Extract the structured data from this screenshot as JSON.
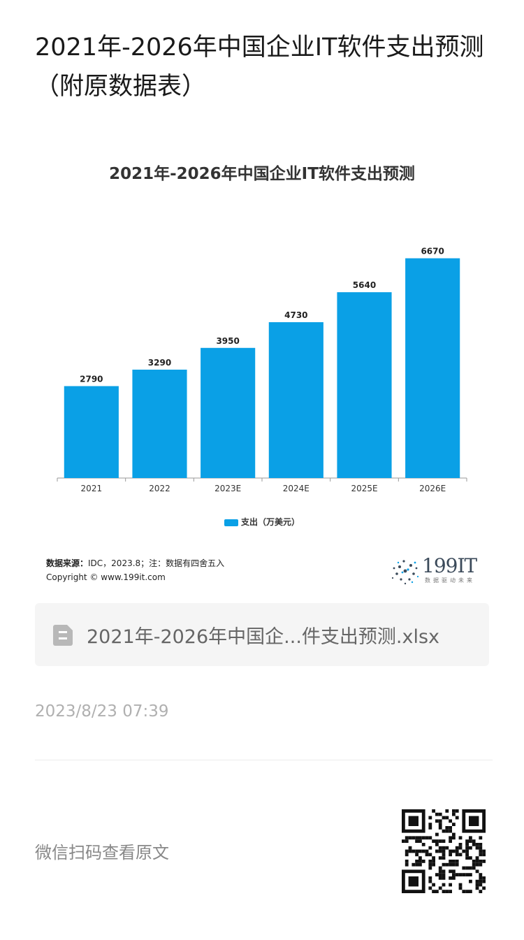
{
  "article": {
    "title": "2021年-2026年中国企业IT软件支出预测（附原数据表）"
  },
  "chart_data": {
    "type": "bar",
    "title": "2021年-2026年中国企业IT软件支出预测",
    "categories": [
      "2021",
      "2022",
      "2023E",
      "2024E",
      "2025E",
      "2026E"
    ],
    "series": [
      {
        "name": "支出（万美元）",
        "values": [
          2790,
          3290,
          3950,
          4730,
          5640,
          6670
        ]
      }
    ],
    "ylim": [
      0,
      7000
    ],
    "grid": false,
    "legend_position": "bottom",
    "colors": {
      "bar": "#0aa0e6"
    }
  },
  "source": {
    "label": "数据来源：",
    "text": "IDC，2023.8；注：数据有四舍五入",
    "copyright": "Copyright © www.199it.com"
  },
  "logo": {
    "text": "199IT",
    "tagline": "数据驱动未来"
  },
  "attachment": {
    "icon": "spreadsheet-file-icon",
    "filename": "2021年-2026年中国企...件支出预测.xlsx"
  },
  "meta": {
    "timestamp": "2023/8/23 07:39"
  },
  "footer": {
    "qr_hint": "微信扫码查看原文",
    "qr_icon": "qr-code-icon"
  }
}
